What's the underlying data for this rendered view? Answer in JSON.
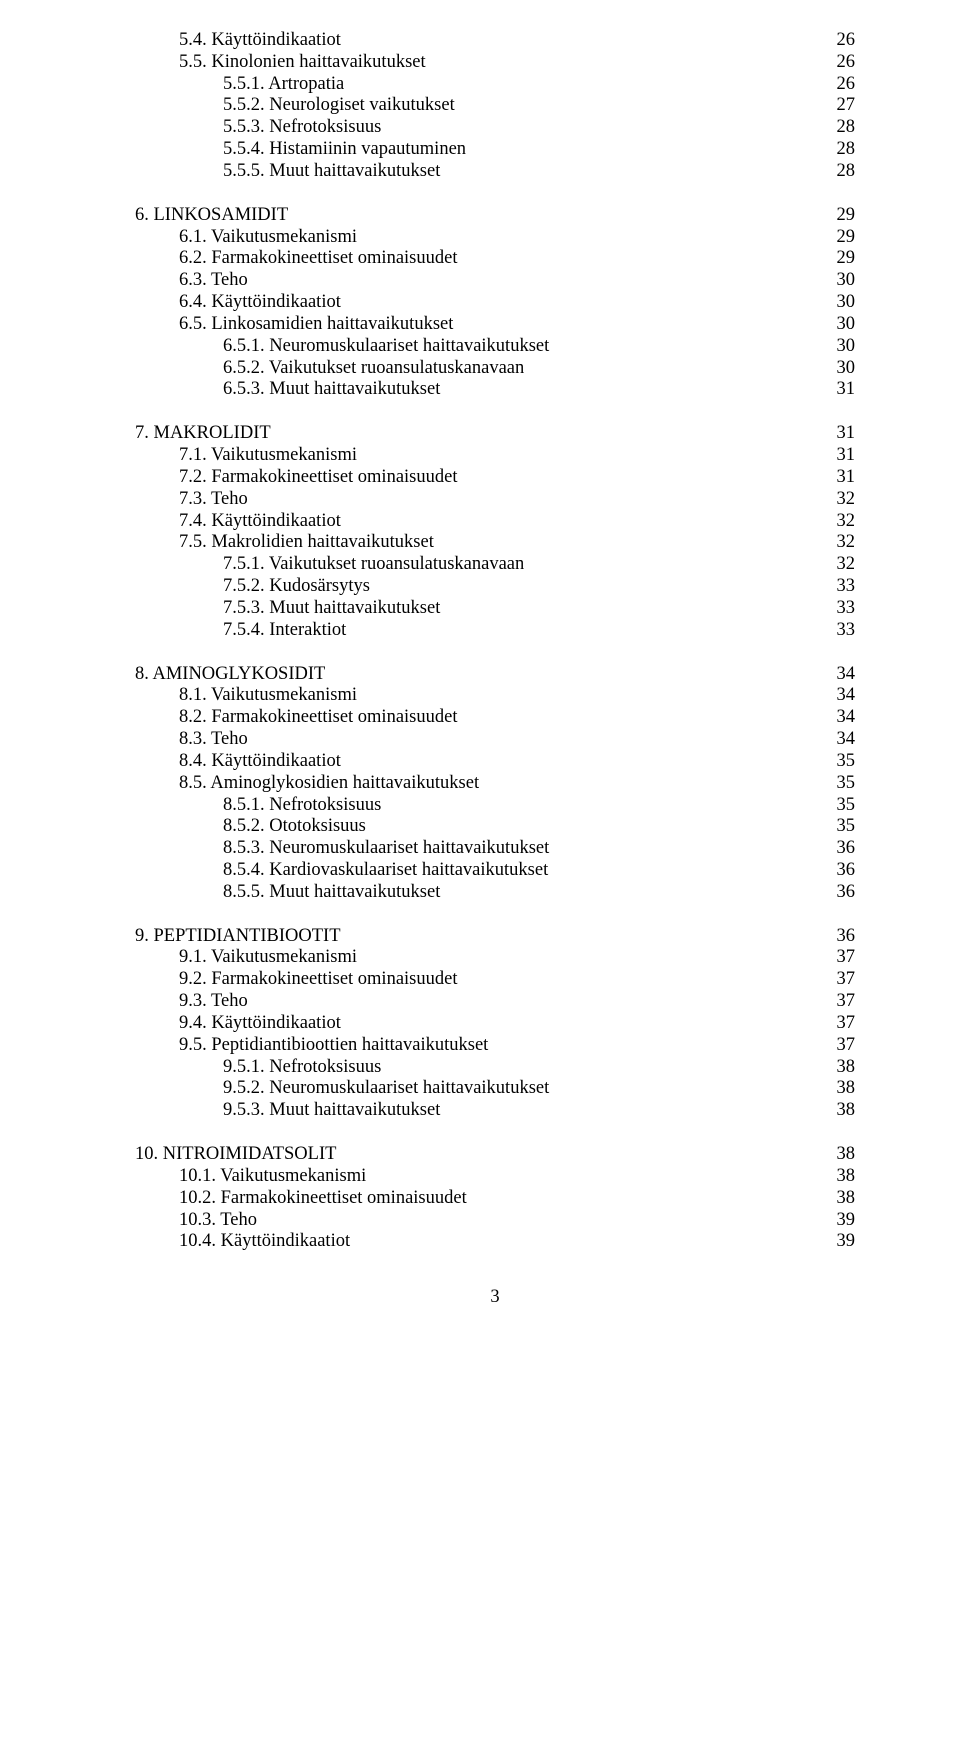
{
  "font_family": "Times New Roman",
  "font_size_pt": 14,
  "text_color": "#000000",
  "background_color": "#ffffff",
  "page_number": "3",
  "sections": [
    {
      "items": [
        {
          "indent": 1,
          "label": "5.4. Käyttöindikaatiot",
          "page": "26"
        },
        {
          "indent": 1,
          "label": "5.5. Kinolonien haittavaikutukset",
          "page": "26"
        },
        {
          "indent": 2,
          "label": "5.5.1. Artropatia",
          "page": "26"
        },
        {
          "indent": 2,
          "label": "5.5.2. Neurologiset vaikutukset",
          "page": "27"
        },
        {
          "indent": 2,
          "label": "5.5.3. Nefrotoksisuus",
          "page": "28"
        },
        {
          "indent": 2,
          "label": "5.5.4. Histamiinin vapautuminen",
          "page": "28"
        },
        {
          "indent": 2,
          "label": "5.5.5. Muut haittavaikutukset",
          "page": "28"
        }
      ]
    },
    {
      "items": [
        {
          "indent": 0,
          "label": "6. LINKOSAMIDIT",
          "page": "29"
        },
        {
          "indent": 1,
          "label": "6.1. Vaikutusmekanismi",
          "page": "29"
        },
        {
          "indent": 1,
          "label": "6.2. Farmakokineettiset ominaisuudet",
          "page": "29"
        },
        {
          "indent": 1,
          "label": "6.3. Teho",
          "page": "30"
        },
        {
          "indent": 1,
          "label": "6.4. Käyttöindikaatiot",
          "page": "30"
        },
        {
          "indent": 1,
          "label": "6.5. Linkosamidien haittavaikutukset",
          "page": "30"
        },
        {
          "indent": 2,
          "label": "6.5.1. Neuromuskulaariset haittavaikutukset",
          "page": "30"
        },
        {
          "indent": 2,
          "label": "6.5.2. Vaikutukset ruoansulatuskanavaan",
          "page": "30"
        },
        {
          "indent": 2,
          "label": "6.5.3. Muut haittavaikutukset",
          "page": "31"
        }
      ]
    },
    {
      "items": [
        {
          "indent": 0,
          "label": "7. MAKROLIDIT",
          "page": "31"
        },
        {
          "indent": 1,
          "label": "7.1. Vaikutusmekanismi",
          "page": "31"
        },
        {
          "indent": 1,
          "label": "7.2. Farmakokineettiset ominaisuudet",
          "page": "31"
        },
        {
          "indent": 1,
          "label": "7.3. Teho",
          "page": "32"
        },
        {
          "indent": 1,
          "label": "7.4. Käyttöindikaatiot",
          "page": "32"
        },
        {
          "indent": 1,
          "label": "7.5. Makrolidien haittavaikutukset",
          "page": "32"
        },
        {
          "indent": 2,
          "label": "7.5.1. Vaikutukset ruoansulatuskanavaan",
          "page": "32"
        },
        {
          "indent": 2,
          "label": "7.5.2. Kudosärsytys",
          "page": "33"
        },
        {
          "indent": 2,
          "label": "7.5.3. Muut haittavaikutukset",
          "page": "33"
        },
        {
          "indent": 2,
          "label": "7.5.4. Interaktiot",
          "page": "33"
        }
      ]
    },
    {
      "items": [
        {
          "indent": 0,
          "label": "8. AMINOGLYKOSIDIT",
          "page": "34"
        },
        {
          "indent": 1,
          "label": "8.1. Vaikutusmekanismi",
          "page": "34"
        },
        {
          "indent": 1,
          "label": "8.2. Farmakokineettiset ominaisuudet",
          "page": "34"
        },
        {
          "indent": 1,
          "label": "8.3. Teho",
          "page": "34"
        },
        {
          "indent": 1,
          "label": "8.4. Käyttöindikaatiot",
          "page": "35"
        },
        {
          "indent": 1,
          "label": "8.5. Aminoglykosidien haittavaikutukset",
          "page": "35"
        },
        {
          "indent": 2,
          "label": "8.5.1. Nefrotoksisuus",
          "page": "35"
        },
        {
          "indent": 2,
          "label": "8.5.2. Ototoksisuus",
          "page": "35"
        },
        {
          "indent": 2,
          "label": "8.5.3. Neuromuskulaariset haittavaikutukset",
          "page": "36"
        },
        {
          "indent": 2,
          "label": "8.5.4. Kardiovaskulaariset haittavaikutukset",
          "page": "36"
        },
        {
          "indent": 2,
          "label": "8.5.5. Muut haittavaikutukset",
          "page": "36"
        }
      ]
    },
    {
      "items": [
        {
          "indent": 0,
          "label": "9. PEPTIDIANTIBIOOTIT",
          "page": "36"
        },
        {
          "indent": 1,
          "label": "9.1. Vaikutusmekanismi",
          "page": "37"
        },
        {
          "indent": 1,
          "label": "9.2. Farmakokineettiset ominaisuudet",
          "page": "37"
        },
        {
          "indent": 1,
          "label": "9.3. Teho",
          "page": "37"
        },
        {
          "indent": 1,
          "label": "9.4. Käyttöindikaatiot",
          "page": "37"
        },
        {
          "indent": 1,
          "label": "9.5. Peptidiantibioottien haittavaikutukset",
          "page": "37"
        },
        {
          "indent": 2,
          "label": "9.5.1. Nefrotoksisuus",
          "page": "38"
        },
        {
          "indent": 2,
          "label": "9.5.2. Neuromuskulaariset haittavaikutukset",
          "page": "38"
        },
        {
          "indent": 2,
          "label": "9.5.3. Muut haittavaikutukset",
          "page": "38"
        }
      ]
    },
    {
      "items": [
        {
          "indent": 0,
          "label": "10. NITROIMIDATSOLIT",
          "page": "38"
        },
        {
          "indent": 1,
          "label": "10.1. Vaikutusmekanismi",
          "page": "38"
        },
        {
          "indent": 1,
          "label": "10.2. Farmakokineettiset ominaisuudet",
          "page": "38"
        },
        {
          "indent": 1,
          "label": "10.3. Teho",
          "page": "39"
        },
        {
          "indent": 1,
          "label": "10.4. Käyttöindikaatiot",
          "page": "39"
        }
      ]
    }
  ]
}
